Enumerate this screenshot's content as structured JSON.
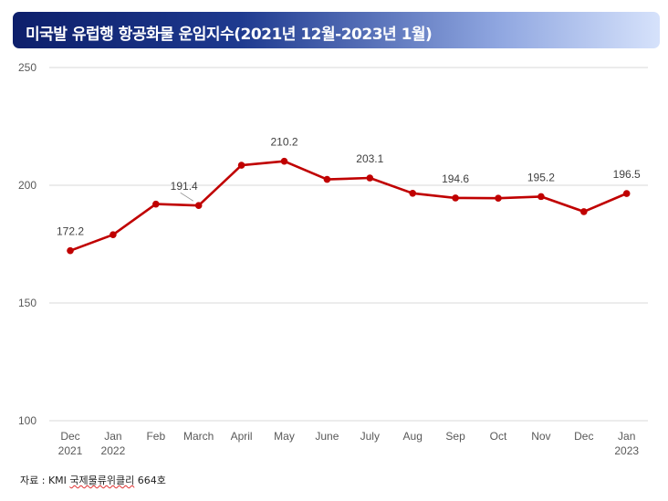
{
  "header": {
    "title": "미국발 유럽행 항공화물 운임지수(2021년 12월-2023년 1월)"
  },
  "source": {
    "label": "자료 : KMI ",
    "name": "국제물류위클리",
    "issue": " 664호"
  },
  "colors": {
    "line": "#c00000",
    "grid": "#d9d9d9",
    "axis_text": "#595959"
  },
  "chart_data": {
    "type": "line",
    "title": "미국발 유럽행 항공화물 운임지수(2021년 12월-2023년 1월)",
    "xlabel": "",
    "ylabel": "",
    "categories": [
      [
        "Dec",
        "2021"
      ],
      [
        "Jan",
        "2022"
      ],
      [
        "Feb"
      ],
      [
        "March"
      ],
      [
        "April"
      ],
      [
        "May"
      ],
      [
        "June"
      ],
      [
        "July"
      ],
      [
        "Aug"
      ],
      [
        "Sep"
      ],
      [
        "Oct"
      ],
      [
        "Nov"
      ],
      [
        "Dec"
      ],
      [
        "Jan",
        "2023"
      ]
    ],
    "series": [
      {
        "values": [
          172.2,
          179.0,
          192.0,
          191.4,
          208.5,
          210.2,
          202.5,
          203.1,
          196.6,
          194.6,
          194.5,
          195.2,
          188.8,
          196.5
        ]
      }
    ],
    "data_labels": [
      {
        "index": 0,
        "text": "172.2"
      },
      {
        "index": 3,
        "text": "191.4"
      },
      {
        "index": 5,
        "text": "210.2"
      },
      {
        "index": 7,
        "text": "203.1"
      },
      {
        "index": 9,
        "text": "194.6"
      },
      {
        "index": 11,
        "text": "195.2"
      },
      {
        "index": 13,
        "text": "196.5"
      }
    ],
    "ylim": [
      100,
      250
    ],
    "yticks": [
      100,
      150,
      200,
      250
    ],
    "grid": true,
    "legend": "none"
  }
}
